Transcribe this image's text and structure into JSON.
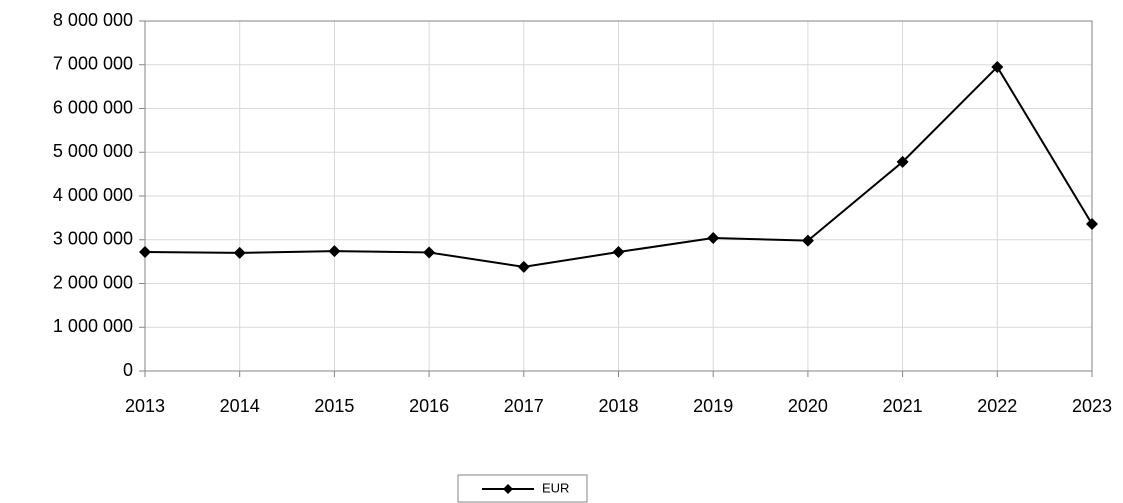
{
  "chart_data": {
    "type": "line",
    "categories": [
      "2013",
      "2014",
      "2015",
      "2016",
      "2017",
      "2018",
      "2019",
      "2020",
      "2021",
      "2022",
      "2023"
    ],
    "series": [
      {
        "name": "EUR",
        "color": "#000000",
        "values": [
          2720000,
          2700000,
          2740000,
          2710000,
          2380000,
          2720000,
          3040000,
          2980000,
          4780000,
          6950000,
          3360000
        ]
      }
    ],
    "ylim": [
      0,
      8000000
    ],
    "yticks": [
      0,
      {
        "value": 1000000,
        "label": "1 000 000"
      },
      {
        "value": 2000000,
        "label": "2 000 000"
      },
      {
        "value": 3000000,
        "label": "3 000 000"
      },
      {
        "value": 4000000,
        "label": "4 000 000"
      },
      {
        "value": 5000000,
        "label": "5 000 000"
      },
      {
        "value": 6000000,
        "label": "6 000 000"
      },
      {
        "value": 7000000,
        "label": "7 000 000"
      },
      {
        "value": 8000000,
        "label": "8 000 000"
      }
    ],
    "grid": true,
    "legend": "bottom"
  }
}
